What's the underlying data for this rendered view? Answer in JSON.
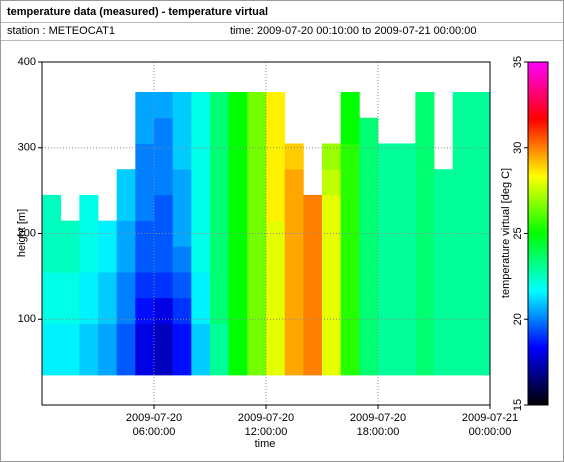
{
  "chart_data": {
    "type": "heatmap",
    "title": "temperature data (measured) - temperature virtual",
    "station": "station : METEOCAT1",
    "time_range": "time: 2009-07-20 00:10:00 to 2009-07-21 00:00:00",
    "xlabel": "time",
    "ylabel": "height [m]",
    "zlabel": "temperature virtual [deg C]",
    "xlim": [
      "2009-07-20 00:00:00",
      "2009-07-21 00:00:00"
    ],
    "xticks": [
      "2009-07-20 06:00:00",
      "2009-07-20 12:00:00",
      "2009-07-20 18:00:00",
      "2009-07-21 00:00:00"
    ],
    "ylim": [
      0,
      400
    ],
    "yticks": [
      100,
      200,
      300,
      400
    ],
    "zlim": [
      15,
      35
    ],
    "zticks": [
      15,
      20,
      25,
      30,
      35
    ],
    "colormap": [
      "#000000",
      "#0000ff",
      "#00ffff",
      "#00ff00",
      "#ffff00",
      "#ff0000",
      "#ff00ff"
    ],
    "grid": true,
    "x_bins": [
      "2009-07-20 00:00:00",
      "2009-07-20 01:00:00",
      "2009-07-20 02:00:00",
      "2009-07-20 03:00:00",
      "2009-07-20 04:00:00",
      "2009-07-20 05:00:00",
      "2009-07-20 06:00:00",
      "2009-07-20 07:00:00",
      "2009-07-20 08:00:00",
      "2009-07-20 09:00:00",
      "2009-07-20 10:00:00",
      "2009-07-20 11:00:00",
      "2009-07-20 12:00:00",
      "2009-07-20 13:00:00",
      "2009-07-20 14:00:00",
      "2009-07-20 15:00:00",
      "2009-07-20 16:00:00",
      "2009-07-20 17:00:00",
      "2009-07-20 18:00:00",
      "2009-07-20 19:00:00",
      "2009-07-20 20:00:00",
      "2009-07-20 21:00:00",
      "2009-07-20 22:00:00",
      "2009-07-20 23:00:00",
      "2009-07-21 00:00:00"
    ],
    "y_bins": [
      35,
      65,
      95,
      125,
      155,
      185,
      215,
      245,
      275,
      305,
      335,
      365
    ],
    "values": [
      [
        21.5,
        21.5,
        21,
        20.5,
        19.5,
        18,
        17.5,
        18.5,
        21,
        23,
        25,
        26.5,
        28,
        29.5,
        30,
        28,
        25.5,
        23.5,
        23,
        23,
        23.5,
        23,
        23,
        23
      ],
      [
        21.5,
        21.5,
        21,
        20.5,
        19.5,
        18,
        17.5,
        18.5,
        21,
        23,
        25,
        26.5,
        28,
        29.5,
        30,
        28,
        25.5,
        23.5,
        23,
        23,
        23.5,
        23,
        23,
        23
      ],
      [
        22,
        22,
        21.5,
        21,
        20,
        18.5,
        18,
        19,
        21.5,
        23.5,
        25,
        26.5,
        28,
        29.5,
        30,
        28,
        25.5,
        23.5,
        23,
        23,
        23.5,
        23,
        23,
        23
      ],
      [
        22,
        22,
        21.5,
        21,
        20,
        19,
        19,
        19.5,
        21.5,
        23.5,
        25,
        26.5,
        28,
        29.5,
        30,
        28,
        25.5,
        23.5,
        23,
        23,
        23.5,
        23,
        23,
        23
      ],
      [
        22.5,
        22.5,
        22,
        21.5,
        20.5,
        19.5,
        19.5,
        20,
        22,
        23.5,
        25,
        26.5,
        28,
        29.5,
        30,
        28,
        25.5,
        23.5,
        23,
        23,
        23.5,
        23,
        23,
        23
      ],
      [
        22.5,
        22.5,
        22,
        21.5,
        20.5,
        19.5,
        19.5,
        20.5,
        22,
        23.5,
        25,
        26.5,
        28,
        29.5,
        30,
        28,
        25.5,
        23.5,
        23,
        23,
        23.5,
        23,
        23,
        23
      ],
      [
        22.5,
        null,
        22,
        null,
        21,
        20,
        19.5,
        20.5,
        22,
        23.5,
        25,
        26.5,
        28.5,
        29.5,
        30,
        28,
        25.5,
        23.5,
        23,
        23,
        23.5,
        23,
        23,
        23
      ],
      [
        null,
        null,
        null,
        null,
        21,
        20,
        20,
        20.5,
        22,
        23.5,
        25,
        26.5,
        28.5,
        29.5,
        null,
        27.5,
        25.5,
        23.5,
        23,
        23,
        23.5,
        23,
        23,
        23
      ],
      [
        null,
        null,
        null,
        null,
        null,
        20,
        20,
        21,
        22,
        23.5,
        25,
        26.5,
        28.5,
        29,
        null,
        27,
        25.5,
        23.5,
        23,
        23,
        23.5,
        null,
        23,
        23
      ],
      [
        null,
        null,
        null,
        null,
        null,
        20.5,
        20,
        21,
        22,
        23.5,
        25,
        26.5,
        28.5,
        null,
        null,
        null,
        25,
        23.5,
        null,
        null,
        23.5,
        null,
        23,
        23
      ],
      [
        null,
        null,
        null,
        null,
        null,
        20.5,
        20.5,
        21,
        22,
        23.5,
        25,
        26.5,
        28.5,
        null,
        null,
        null,
        25,
        null,
        null,
        null,
        23.5,
        null,
        23,
        23
      ]
    ]
  }
}
